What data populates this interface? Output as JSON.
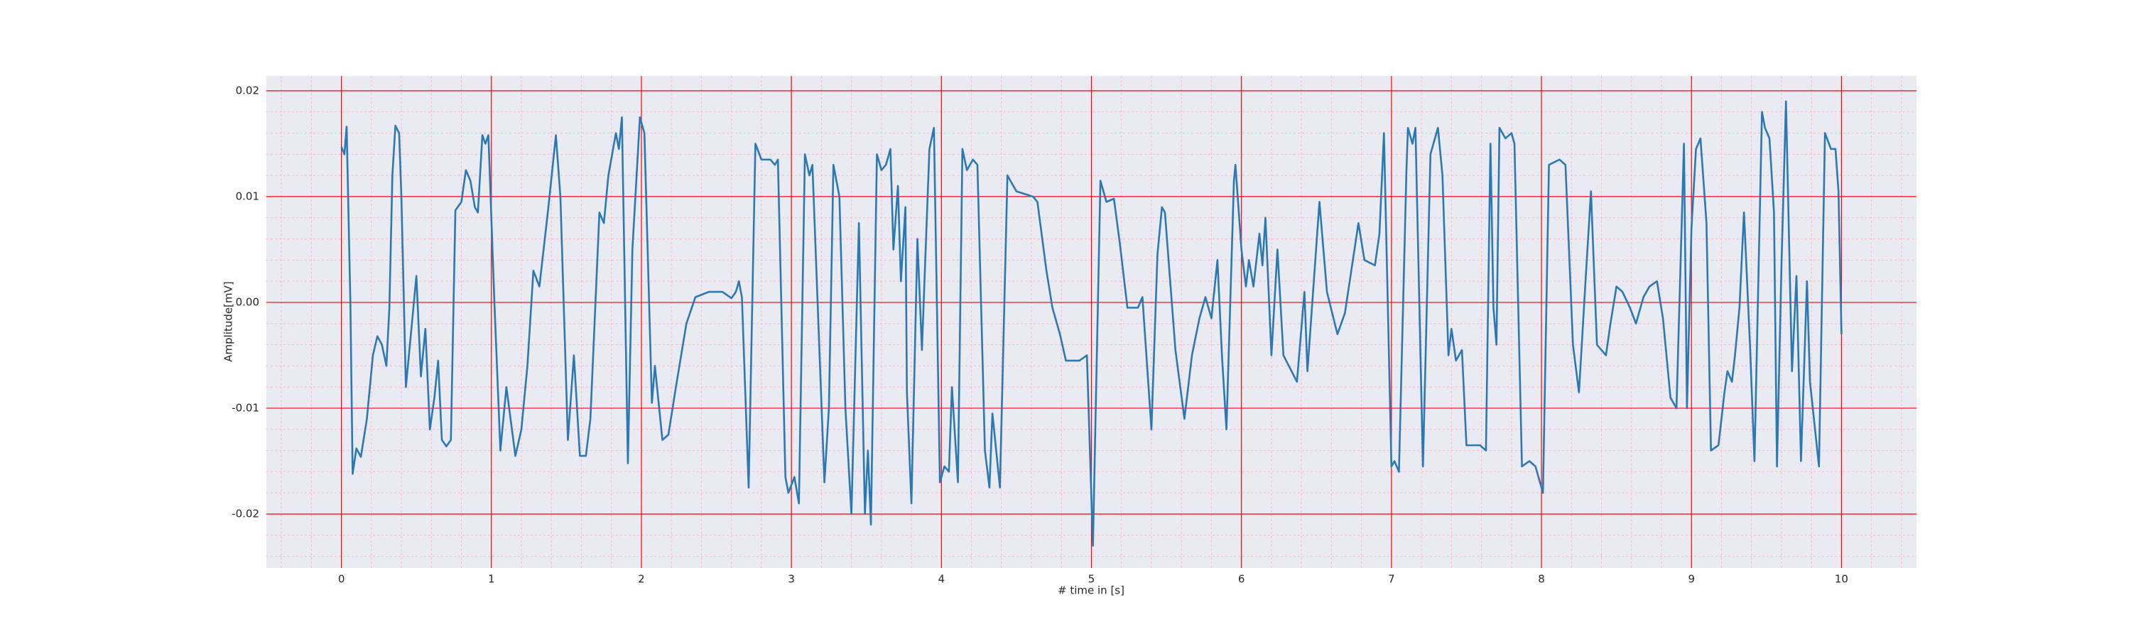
{
  "chart_data": {
    "type": "line",
    "x_label": "# time in [s]",
    "y_label": "Amplitude[mV]",
    "xlim": [
      -0.5,
      10.5
    ],
    "ylim": [
      -0.0251,
      0.0214
    ],
    "xticks": [
      0,
      1,
      2,
      3,
      4,
      5,
      6,
      7,
      8,
      9,
      10
    ],
    "yticks": [
      -0.02,
      -0.01,
      {
        "value": 0,
        "label": "0.00"
      },
      0.01,
      0.02
    ],
    "grid": true,
    "grid_color": "#ff0000",
    "minor_grid": true,
    "minor_grid_color": "#ffb3c0",
    "face_color": "#eaeaf2",
    "series": [
      {
        "color": "#2a78b4",
        "x": [
          0.0,
          0.02,
          0.035,
          0.06,
          0.075,
          0.1,
          0.13,
          0.17,
          0.21,
          0.24,
          0.27,
          0.3,
          0.32,
          0.34,
          0.36,
          0.385,
          0.4,
          0.43,
          0.47,
          0.5,
          0.53,
          0.56,
          0.59,
          0.62,
          0.645,
          0.67,
          0.7,
          0.73,
          0.76,
          0.8,
          0.83,
          0.86,
          0.89,
          0.91,
          0.94,
          0.96,
          0.98,
          1.02,
          1.06,
          1.1,
          1.16,
          1.2,
          1.24,
          1.28,
          1.32,
          1.38,
          1.43,
          1.46,
          1.51,
          1.55,
          1.59,
          1.63,
          1.66,
          1.72,
          1.75,
          1.78,
          1.83,
          1.85,
          1.87,
          1.91,
          1.94,
          1.99,
          2.02,
          2.07,
          2.09,
          2.14,
          2.18,
          2.23,
          2.3,
          2.36,
          2.45,
          2.54,
          2.6,
          2.63,
          2.65,
          2.67,
          2.715,
          2.76,
          2.8,
          2.86,
          2.89,
          2.91,
          2.96,
          2.98,
          3.02,
          3.05,
          3.09,
          3.12,
          3.14,
          3.18,
          3.22,
          3.25,
          3.28,
          3.32,
          3.36,
          3.4,
          3.45,
          3.49,
          3.51,
          3.53,
          3.57,
          3.6,
          3.63,
          3.66,
          3.68,
          3.71,
          3.73,
          3.76,
          3.77,
          3.8,
          3.84,
          3.87,
          3.92,
          3.95,
          3.99,
          4.02,
          4.05,
          4.07,
          4.11,
          4.14,
          4.17,
          4.21,
          4.24,
          4.29,
          4.32,
          4.34,
          4.39,
          4.44,
          4.5,
          4.61,
          4.64,
          4.7,
          4.74,
          4.79,
          4.83,
          4.92,
          4.97,
          5.01,
          5.06,
          5.1,
          5.15,
          5.19,
          5.24,
          5.31,
          5.34,
          5.4,
          5.44,
          5.47,
          5.49,
          5.56,
          5.62,
          5.67,
          5.72,
          5.76,
          5.8,
          5.84,
          5.87,
          5.9,
          5.95,
          5.96,
          6.0,
          6.03,
          6.05,
          6.08,
          6.12,
          6.14,
          6.16,
          6.2,
          6.24,
          6.28,
          6.37,
          6.42,
          6.44,
          6.52,
          6.57,
          6.64,
          6.69,
          6.78,
          6.82,
          6.89,
          6.92,
          6.95,
          7.0,
          7.02,
          7.05,
          7.1,
          7.11,
          7.14,
          7.16,
          7.21,
          7.26,
          7.31,
          7.34,
          7.38,
          7.4,
          7.43,
          7.47,
          7.5,
          7.59,
          7.63,
          7.66,
          7.68,
          7.7,
          7.72,
          7.76,
          7.8,
          7.82,
          7.87,
          7.92,
          7.96,
          8.01,
          8.05,
          8.12,
          8.16,
          8.21,
          8.25,
          8.3,
          8.33,
          8.37,
          8.43,
          8.46,
          8.5,
          8.54,
          8.59,
          8.63,
          8.68,
          8.72,
          8.77,
          8.81,
          8.86,
          8.9,
          8.95,
          8.97,
          9.0,
          9.03,
          9.06,
          9.1,
          9.13,
          9.18,
          9.22,
          9.24,
          9.27,
          9.29,
          9.32,
          9.35,
          9.39,
          9.42,
          9.47,
          9.49,
          9.52,
          9.55,
          9.57,
          9.6,
          9.63,
          9.67,
          9.7,
          9.73,
          9.77,
          9.79,
          9.85,
          9.89,
          9.93,
          9.96,
          9.98,
          10.0
        ],
        "values": [
          0.0147,
          0.014,
          0.0166,
          0.0,
          -0.0162,
          -0.0138,
          -0.0146,
          -0.011,
          -0.005,
          -0.0032,
          -0.004,
          -0.006,
          -0.0005,
          0.012,
          0.0167,
          0.016,
          0.01,
          -0.008,
          -0.002,
          0.0025,
          -0.007,
          -0.0025,
          -0.012,
          -0.009,
          -0.0055,
          -0.013,
          -0.0136,
          -0.013,
          0.0087,
          0.0095,
          0.0125,
          0.0115,
          0.009,
          0.0085,
          0.0158,
          0.015,
          0.0158,
          0.0,
          -0.014,
          -0.008,
          -0.0145,
          -0.012,
          -0.006,
          0.003,
          0.0015,
          0.009,
          0.0158,
          0.01,
          -0.013,
          -0.005,
          -0.0145,
          -0.0145,
          -0.011,
          0.0085,
          0.0075,
          0.012,
          0.016,
          0.0145,
          0.0175,
          -0.0152,
          0.005,
          0.0175,
          0.016,
          -0.0095,
          -0.006,
          -0.013,
          -0.0125,
          -0.008,
          -0.002,
          0.0005,
          0.001,
          0.001,
          0.0004,
          0.001,
          0.002,
          0.0005,
          -0.0175,
          0.015,
          0.0135,
          0.0135,
          0.013,
          0.0135,
          -0.0165,
          -0.018,
          -0.0165,
          -0.019,
          0.014,
          0.012,
          0.013,
          -0.002,
          -0.017,
          -0.01,
          0.013,
          0.01,
          -0.01,
          -0.02,
          0.0075,
          -0.02,
          -0.014,
          -0.021,
          0.014,
          0.0125,
          0.013,
          0.0145,
          0.005,
          0.011,
          0.002,
          0.009,
          -0.0085,
          -0.019,
          0.006,
          -0.0045,
          0.0145,
          0.0165,
          -0.017,
          -0.0155,
          -0.016,
          -0.008,
          -0.017,
          0.0145,
          0.0125,
          0.0135,
          0.013,
          -0.014,
          -0.0175,
          -0.0105,
          -0.0175,
          0.012,
          0.0105,
          0.01,
          0.0095,
          0.003,
          -0.0005,
          -0.003,
          -0.0055,
          -0.0055,
          -0.005,
          -0.023,
          0.0115,
          0.0095,
          0.0098,
          0.0055,
          -0.0005,
          -0.0005,
          0.0005,
          -0.012,
          0.0045,
          0.009,
          0.0085,
          -0.0045,
          -0.011,
          -0.005,
          -0.0015,
          0.0005,
          -0.0015,
          0.004,
          -0.005,
          -0.012,
          0.0115,
          0.013,
          0.005,
          0.0015,
          0.004,
          0.0015,
          0.0065,
          0.0035,
          0.008,
          -0.005,
          0.005,
          -0.005,
          -0.0075,
          0.001,
          -0.0065,
          0.0095,
          0.001,
          -0.003,
          -0.001,
          0.0075,
          0.004,
          0.0035,
          0.0065,
          0.016,
          -0.0155,
          -0.015,
          -0.016,
          0.0125,
          0.0165,
          0.015,
          0.0165,
          -0.0155,
          0.014,
          0.0165,
          0.012,
          -0.005,
          -0.0025,
          -0.0055,
          -0.0045,
          -0.0135,
          -0.0135,
          -0.014,
          0.015,
          -0.0005,
          -0.004,
          0.0165,
          0.0155,
          0.016,
          0.015,
          -0.0155,
          -0.015,
          -0.0155,
          -0.018,
          0.013,
          0.0135,
          0.013,
          -0.004,
          -0.0085,
          0.0035,
          0.0105,
          -0.004,
          -0.005,
          -0.002,
          0.0015,
          0.001,
          -0.0005,
          -0.002,
          0.0005,
          0.0015,
          0.002,
          -0.0015,
          -0.009,
          -0.01,
          0.015,
          -0.01,
          0.007,
          0.0145,
          0.0155,
          0.0075,
          -0.014,
          -0.0135,
          -0.0085,
          -0.0065,
          -0.0075,
          -0.005,
          -0.0005,
          0.0085,
          -0.004,
          -0.015,
          0.018,
          0.0165,
          0.0155,
          0.0085,
          -0.0155,
          0.0035,
          0.019,
          -0.0065,
          0.0025,
          -0.015,
          0.002,
          -0.0075,
          -0.0155,
          0.016,
          0.0145,
          0.0145,
          0.0105,
          -0.003
        ]
      }
    ]
  }
}
